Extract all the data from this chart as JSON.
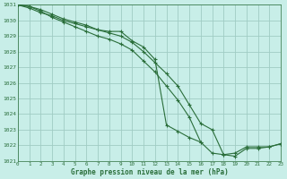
{
  "title": "Graphe pression niveau de la mer (hPa)",
  "bg_color": "#c8eee8",
  "grid_color": "#a0ccc4",
  "line_color": "#2a6e3a",
  "x_min": 0,
  "x_max": 23,
  "y_min": 1021,
  "y_max": 1031,
  "yticks": [
    1021,
    1022,
    1023,
    1024,
    1025,
    1026,
    1027,
    1028,
    1029,
    1030,
    1031
  ],
  "series": [
    {
      "x": [
        0,
        1,
        2,
        3,
        4,
        5,
        6,
        7,
        8,
        9,
        10,
        11,
        12,
        13,
        14,
        15,
        16,
        17,
        18,
        19,
        20,
        21,
        22,
        23
      ],
      "y": [
        1031.0,
        1030.9,
        1030.6,
        1030.2,
        1029.9,
        1029.6,
        1029.3,
        1029.0,
        1028.8,
        1028.5,
        1028.1,
        1027.4,
        1026.7,
        1025.8,
        1024.9,
        1023.8,
        1022.2,
        1021.5,
        1021.4,
        1021.5,
        1021.9,
        1021.9,
        1021.9,
        1022.1
      ]
    },
    {
      "x": [
        0,
        1,
        2,
        3,
        4,
        5,
        6,
        7,
        8,
        9,
        10,
        11,
        12,
        13,
        14,
        15,
        16
      ],
      "y": [
        1031.0,
        1030.8,
        1030.5,
        1030.3,
        1030.0,
        1029.8,
        1029.6,
        1029.4,
        1029.3,
        1029.3,
        1028.7,
        1028.3,
        1027.5,
        1023.3,
        1022.9,
        1022.5,
        1022.2
      ]
    },
    {
      "x": [
        0,
        1,
        2,
        3,
        4,
        5,
        6,
        7,
        8,
        9,
        10,
        11,
        12,
        13,
        14,
        15,
        16,
        17,
        18,
        19,
        20,
        21,
        22,
        23
      ],
      "y": [
        1031.0,
        1030.9,
        1030.7,
        1030.4,
        1030.1,
        1029.9,
        1029.7,
        1029.4,
        1029.2,
        1029.0,
        1028.6,
        1028.0,
        1027.3,
        1026.6,
        1025.8,
        1024.6,
        1023.4,
        1023.0,
        1021.4,
        1021.3,
        1021.8,
        1021.8,
        1021.9,
        1022.1
      ]
    }
  ]
}
